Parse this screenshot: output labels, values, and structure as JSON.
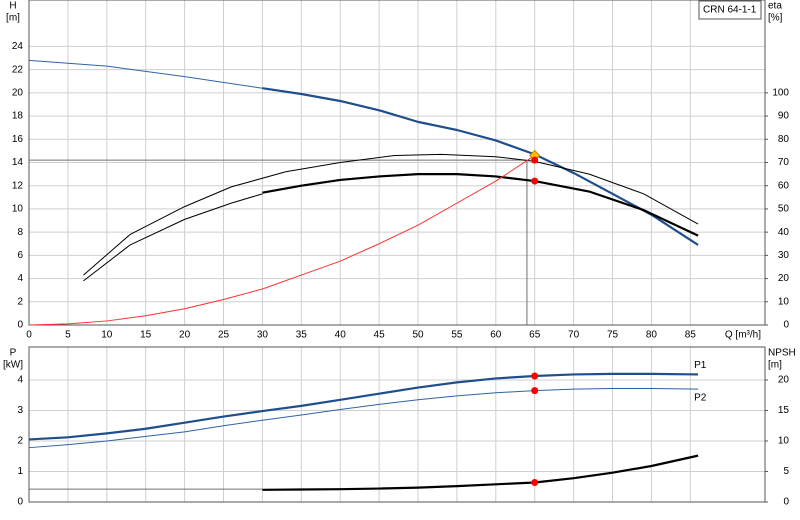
{
  "chart_data": [
    {
      "type": "line",
      "title": "CRN 64-1-1",
      "y_label": "H",
      "y_unit": "[m]",
      "y2_label": "eta",
      "y2_unit": "[%]",
      "x_label": "Q [m³/h]",
      "xlim": [
        0,
        94.6
      ],
      "xticks": [
        0,
        5,
        10,
        15,
        20,
        25,
        30,
        35,
        40,
        45,
        50,
        55,
        60,
        65,
        70,
        75,
        80,
        85
      ],
      "ylim": [
        0,
        28
      ],
      "yticks": [
        0,
        2,
        4,
        6,
        8,
        10,
        12,
        14,
        16,
        18,
        20,
        22,
        24
      ],
      "y2lim": [
        0,
        140
      ],
      "y2ticks": [
        0,
        10,
        20,
        30,
        40,
        50,
        60,
        70,
        80,
        90,
        100
      ],
      "grid": true,
      "series": [
        {
          "color": "#2f63a6",
          "style": "thin",
          "x": [
            0,
            10,
            20,
            30
          ],
          "values": [
            22.8,
            22.3,
            21.4,
            20.4
          ]
        },
        {
          "color": "#1f4e8c",
          "style": "bold",
          "x": [
            30,
            35,
            40,
            45,
            50,
            55,
            60,
            65,
            70,
            75,
            80,
            86
          ],
          "values": [
            20.4,
            19.9,
            19.3,
            18.5,
            17.5,
            16.8,
            15.9,
            14.7,
            13.1,
            11.3,
            9.5,
            6.9
          ]
        },
        {
          "color": "#000000",
          "style": "thin",
          "axis": "y2",
          "x": [
            7,
            13,
            20,
            26,
            33,
            40,
            47,
            53,
            60,
            65,
            72,
            79,
            86
          ],
          "values": [
            21.5,
            39,
            51,
            59.5,
            66,
            70,
            73,
            73.5,
            72.5,
            70.5,
            65,
            56.5,
            43.5
          ]
        },
        {
          "color": "#000000",
          "style": "thin",
          "axis": "y2",
          "x": [
            7,
            13,
            20,
            26,
            30
          ],
          "values": [
            19,
            34.5,
            45.5,
            52.5,
            56.5
          ]
        },
        {
          "color": "#000000",
          "style": "bold",
          "axis": "y2",
          "x": [
            30,
            35,
            40,
            45,
            50,
            55,
            60,
            65,
            72,
            79,
            86
          ],
          "values": [
            57,
            60,
            62.5,
            64,
            65,
            65,
            64,
            62,
            57.5,
            49.5,
            38.5
          ]
        },
        {
          "color": "#ff3030",
          "style": "thin",
          "x": [
            0,
            5,
            10,
            15,
            20,
            25,
            30,
            35,
            40,
            45,
            50,
            55,
            60,
            65
          ],
          "values": [
            0,
            0.1,
            0.35,
            0.8,
            1.4,
            2.2,
            3.1,
            4.3,
            5.5,
            7.0,
            8.6,
            10.5,
            12.4,
            14.6
          ]
        }
      ],
      "duty_lines": {
        "x": 64,
        "y": 14.2,
        "color": "#707070"
      },
      "markers": [
        {
          "x": 65,
          "y": 14.6,
          "color": "#ffc000",
          "shape": "diamond"
        },
        {
          "x": 65,
          "y": 14.2,
          "color": "#ff0000",
          "shape": "dot"
        },
        {
          "x": 65,
          "y": 62,
          "axis": "y2",
          "color": "#ff0000",
          "shape": "dot"
        }
      ]
    },
    {
      "type": "line",
      "y_label": "P",
      "y_unit": "[kW]",
      "y2_label": "NPSH",
      "y2_unit": "[m]",
      "xlim": [
        0,
        94.6
      ],
      "xgrid": [
        0,
        5,
        10,
        15,
        20,
        25,
        30,
        35,
        40,
        45,
        50,
        55,
        60,
        65,
        70,
        75,
        80,
        85
      ],
      "ylim": [
        0,
        5.08
      ],
      "yticks": [
        0,
        1,
        2,
        3,
        4
      ],
      "y2lim": [
        0,
        25.4
      ],
      "y2ticks": [
        0,
        5,
        10,
        15,
        20
      ],
      "grid": true,
      "series": [
        {
          "name": "P1",
          "color": "#1f4e8c",
          "style": "bold",
          "x": [
            0,
            5,
            10,
            15,
            20,
            25,
            30,
            35,
            40,
            45,
            50,
            55,
            60,
            65,
            70,
            75,
            80,
            86
          ],
          "values": [
            2.05,
            2.12,
            2.25,
            2.4,
            2.6,
            2.8,
            2.98,
            3.15,
            3.35,
            3.55,
            3.75,
            3.92,
            4.05,
            4.13,
            4.18,
            4.2,
            4.2,
            4.18
          ]
        },
        {
          "name": "P2",
          "color": "#2f63a6",
          "style": "thin",
          "x": [
            0,
            5,
            10,
            15,
            20,
            25,
            30,
            35,
            40,
            45,
            50,
            55,
            60,
            65,
            70,
            75,
            80,
            86
          ],
          "values": [
            1.78,
            1.88,
            2.0,
            2.15,
            2.3,
            2.5,
            2.68,
            2.85,
            3.03,
            3.2,
            3.35,
            3.48,
            3.58,
            3.65,
            3.7,
            3.72,
            3.72,
            3.7
          ]
        },
        {
          "color": "#707070",
          "style": "thin",
          "axis": "y2",
          "x": [
            0,
            30
          ],
          "values": [
            2.1,
            2.1
          ]
        },
        {
          "color": "#000000",
          "style": "bold",
          "axis": "y2",
          "x": [
            30,
            35,
            40,
            45,
            50,
            55,
            60,
            65,
            70,
            75,
            80,
            86
          ],
          "values": [
            2.0,
            2.05,
            2.1,
            2.2,
            2.35,
            2.6,
            2.9,
            3.2,
            3.9,
            4.8,
            5.9,
            7.6
          ]
        }
      ],
      "markers": [
        {
          "x": 65,
          "y": 4.13,
          "color": "#ff0000",
          "shape": "dot"
        },
        {
          "x": 65,
          "y": 3.65,
          "color": "#ff0000",
          "shape": "dot"
        },
        {
          "x": 65,
          "y": 3.2,
          "axis": "y2",
          "color": "#ff0000",
          "shape": "dot"
        }
      ]
    }
  ]
}
